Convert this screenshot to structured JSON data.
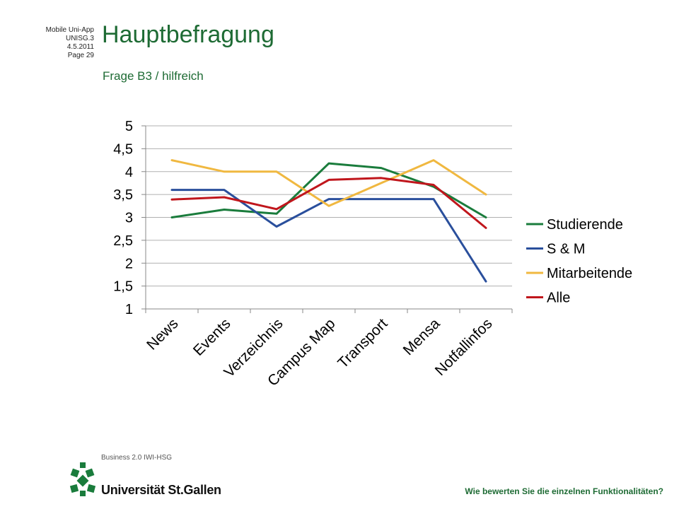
{
  "meta": {
    "line1": "Mobile Uni-App",
    "line2": "UNISG.3",
    "line3": "4.5.2011",
    "line4": "Page 29"
  },
  "title": "Hauptbefragung",
  "subtitle": "Frage B3 / hilfreich",
  "footer_question": "Wie bewerten  Sie die einzelnen Funktionalitäten?",
  "logo": {
    "top_text": "Business 2.0 IWI-HSG",
    "name": "Universität St.Gallen"
  },
  "colors": {
    "brand_green": "#1e6b34",
    "grid": "#b0b0b0"
  },
  "chart_data": {
    "type": "line",
    "categories": [
      "News",
      "Events",
      "Verzeichnis",
      "Campus Map",
      "Transport",
      "Mensa",
      "Notfallinfos"
    ],
    "ylim": [
      1,
      5
    ],
    "yticks": [
      "1",
      "1,5",
      "2",
      "2,5",
      "3",
      "3,5",
      "4",
      "4,5",
      "5"
    ],
    "grid": true,
    "legend_position": "right",
    "series": [
      {
        "name": "Studierende",
        "color": "#1a7c3c",
        "values": [
          3.0,
          3.17,
          3.08,
          4.18,
          4.08,
          3.67,
          3.0
        ]
      },
      {
        "name": "S & M",
        "color": "#2a4f9c",
        "values": [
          3.6,
          3.6,
          2.8,
          3.4,
          3.4,
          3.4,
          1.6
        ]
      },
      {
        "name": "Mitarbeitende",
        "color": "#f0b840",
        "values": [
          4.25,
          4.0,
          4.0,
          3.25,
          3.75,
          4.25,
          3.5
        ]
      },
      {
        "name": "Alle",
        "color": "#c0161c",
        "values": [
          3.39,
          3.44,
          3.18,
          3.82,
          3.86,
          3.71,
          2.77
        ]
      }
    ]
  }
}
